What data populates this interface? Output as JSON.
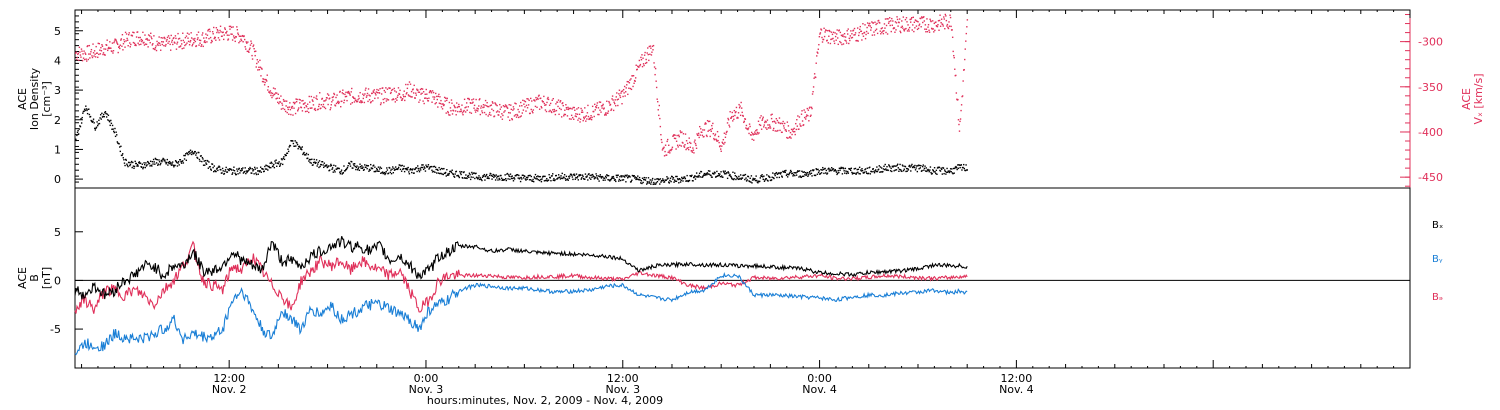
{
  "colors": {
    "black": "#000000",
    "pink": "#e0305a",
    "blue": "#1a7fd6"
  },
  "xaxis": {
    "title": "hours:minutes, Nov.  2, 2009 - Nov.  4, 2009",
    "range_hours": [
      2.6,
      84.0
    ],
    "ticks": [
      {
        "h": 12,
        "time": "12:00",
        "day": "Nov. 2"
      },
      {
        "h": 24,
        "time": "0:00",
        "day": "Nov. 3"
      },
      {
        "h": 36,
        "time": "12:00",
        "day": "Nov. 3"
      },
      {
        "h": 48,
        "time": "0:00",
        "day": "Nov. 4"
      },
      {
        "h": 60,
        "time": "12:00",
        "day": "Nov. 4"
      }
    ]
  },
  "chart_data": [
    {
      "type": "scatter",
      "panel": "top",
      "ylabel_lines": [
        "ACE",
        "Ion Density",
        "[cm⁻³]"
      ],
      "ylim": [
        -0.3,
        5.7
      ],
      "yticks": [
        0,
        1,
        2,
        3,
        4,
        5
      ],
      "ylabel_right_lines": [
        "ACE",
        "Vₓ [km/s]"
      ],
      "ylim_right": [
        -462,
        -265
      ],
      "yticks_right": [
        -450,
        -400,
        -350,
        -300
      ],
      "series": [
        {
          "axis": "left",
          "color": "black",
          "x": [
            2.6,
            3.2,
            3.8,
            4.4,
            5.0,
            5.6,
            6.2,
            6.8,
            7.4,
            8.0,
            8.6,
            9.2,
            9.8,
            10.4,
            11.0,
            11.6,
            12.2,
            12.8,
            13.4,
            14.0,
            14.6,
            15.2,
            15.8,
            16.4,
            17.0,
            17.6,
            18.2,
            18.8,
            19.4,
            20.0,
            20.6,
            21.2,
            21.8,
            22.4,
            23.0,
            23.6,
            24.2,
            24.8,
            25.4,
            26.0,
            27.0,
            28.0,
            29.0,
            30.0,
            31.0,
            32.0,
            33.0,
            34.0,
            35.0,
            36.0,
            37.0,
            38.0,
            39.0,
            40.0,
            41.0,
            42.0,
            43.0,
            44.0,
            45.0,
            46.0,
            47.0,
            48.0,
            49.0,
            50.0,
            51.0,
            52.0,
            53.0,
            54.0,
            55.0,
            56.0,
            56.5,
            57.0
          ],
          "values": [
            1.3,
            2.5,
            1.8,
            2.3,
            1.6,
            0.6,
            0.5,
            0.5,
            0.6,
            0.6,
            0.5,
            0.7,
            1.0,
            0.6,
            0.4,
            0.3,
            0.3,
            0.3,
            0.3,
            0.3,
            0.5,
            0.6,
            1.3,
            1.0,
            0.6,
            0.5,
            0.4,
            0.3,
            0.5,
            0.4,
            0.4,
            0.3,
            0.3,
            0.4,
            0.3,
            0.4,
            0.4,
            0.3,
            0.2,
            0.2,
            0.1,
            0.1,
            0.1,
            0.05,
            0.05,
            0.1,
            0.1,
            0.1,
            0.05,
            0.05,
            0.0,
            -0.05,
            0.0,
            0.05,
            0.2,
            0.2,
            0.1,
            0.0,
            0.1,
            0.2,
            0.2,
            0.3,
            0.3,
            0.3,
            0.3,
            0.4,
            0.4,
            0.4,
            0.3,
            0.3,
            0.4,
            0.4
          ]
        },
        {
          "axis": "right",
          "color": "pink",
          "x": [
            2.6,
            3.2,
            3.8,
            4.4,
            5.0,
            5.6,
            6.2,
            6.8,
            7.4,
            8.0,
            8.6,
            9.2,
            9.8,
            10.4,
            11.0,
            11.6,
            12.2,
            12.8,
            13.4,
            14.0,
            14.6,
            15.2,
            15.8,
            16.4,
            17.0,
            17.6,
            18.2,
            18.8,
            19.4,
            20.0,
            20.6,
            21.2,
            21.8,
            22.4,
            23.0,
            23.6,
            24.2,
            24.8,
            25.4,
            26.0,
            27.0,
            28.0,
            29.0,
            30.0,
            31.0,
            32.0,
            33.0,
            34.0,
            35.0,
            36.0,
            36.6,
            37.2,
            37.8,
            38.4,
            39.0,
            39.6,
            40.2,
            40.8,
            41.4,
            42.0,
            42.6,
            43.2,
            43.8,
            44.4,
            45.0,
            45.6,
            46.2,
            46.8,
            47.4,
            48.0,
            49.0,
            50.0,
            51.0,
            52.0,
            53.0,
            54.0,
            55.0,
            56.0,
            56.5,
            57.0
          ],
          "values": [
            -312,
            -313,
            -310,
            -306,
            -305,
            -298,
            -295,
            -294,
            -300,
            -303,
            -300,
            -298,
            -296,
            -296,
            -292,
            -290,
            -290,
            -294,
            -310,
            -335,
            -355,
            -368,
            -372,
            -370,
            -368,
            -364,
            -366,
            -362,
            -360,
            -359,
            -359,
            -360,
            -356,
            -358,
            -352,
            -360,
            -358,
            -366,
            -372,
            -372,
            -370,
            -374,
            -378,
            -372,
            -366,
            -372,
            -380,
            -378,
            -372,
            -358,
            -340,
            -320,
            -305,
            -420,
            -412,
            -405,
            -418,
            -396,
            -395,
            -415,
            -380,
            -375,
            -405,
            -390,
            -388,
            -392,
            -400,
            -385,
            -380,
            -290,
            -295,
            -292,
            -286,
            -282,
            -280,
            -280,
            -280,
            -276,
            -398,
            -272
          ]
        }
      ]
    },
    {
      "type": "line",
      "panel": "bottom",
      "ylabel_lines": [
        "ACE",
        "B",
        "[nT]"
      ],
      "ylim": [
        -9,
        9.5
      ],
      "yticks": [
        -5,
        0,
        5
      ],
      "x": [
        2.6,
        3.2,
        3.8,
        4.4,
        5.0,
        5.6,
        6.2,
        6.8,
        7.4,
        8.0,
        8.6,
        9.2,
        9.8,
        10.4,
        11.0,
        11.6,
        12.2,
        12.8,
        13.4,
        14.0,
        14.6,
        15.2,
        15.8,
        16.4,
        17.0,
        17.6,
        18.2,
        18.8,
        19.4,
        20.0,
        20.6,
        21.2,
        21.8,
        22.4,
        23.0,
        23.6,
        24.2,
        24.8,
        25.4,
        26.0,
        27.0,
        28.0,
        29.0,
        30.0,
        31.0,
        32.0,
        33.0,
        34.0,
        35.0,
        36.0,
        37.0,
        38.0,
        39.0,
        40.0,
        41.0,
        42.0,
        43.0,
        44.0,
        45.0,
        46.0,
        47.0,
        48.0,
        49.0,
        50.0,
        51.0,
        52.0,
        53.0,
        54.0,
        55.0,
        56.0,
        56.5,
        57.0
      ],
      "series": [
        {
          "name": "Bₓ",
          "color": "black",
          "values": [
            -1,
            -1.5,
            -0.5,
            -1.5,
            -1,
            0,
            0.5,
            1.5,
            1.5,
            0.5,
            1.5,
            1.5,
            3,
            1,
            1,
            1.5,
            3,
            2,
            1.5,
            1,
            4,
            2,
            2,
            1.5,
            2.5,
            3,
            3.5,
            4,
            3.5,
            3.5,
            3,
            3.5,
            2,
            2.5,
            1.5,
            0.5,
            1,
            2.5,
            3,
            3.5,
            3.5,
            3,
            3.2,
            3,
            2.8,
            2.8,
            2.7,
            2.6,
            2.5,
            2.2,
            1,
            1.5,
            1.6,
            1.7,
            1.6,
            1.6,
            1.5,
            1.5,
            1.4,
            1.3,
            1.2,
            0.8,
            0.7,
            0.6,
            0.8,
            0.9,
            1,
            1.2,
            1.6,
            1.5,
            1.5,
            1.4
          ]
        },
        {
          "name": "Bᵧ",
          "color": "blue",
          "values": [
            -7.5,
            -6.5,
            -6.7,
            -6.7,
            -5.5,
            -5.8,
            -6,
            -6,
            -5.5,
            -5,
            -4,
            -6,
            -5.5,
            -5.8,
            -5.8,
            -5,
            -2,
            -1,
            -3,
            -5,
            -6,
            -3,
            -4,
            -5,
            -3,
            -3.5,
            -2.5,
            -4,
            -3.5,
            -3,
            -2.5,
            -2.5,
            -3,
            -3.5,
            -4,
            -5,
            -3,
            -2.5,
            -2,
            -1,
            -0.5,
            -0.6,
            -0.8,
            -0.8,
            -1,
            -1.2,
            -1.1,
            -1,
            -0.6,
            -0.5,
            -1.5,
            -1.8,
            -2,
            -1.2,
            -1,
            0.5,
            0.5,
            -1.5,
            -1.5,
            -1.6,
            -1.7,
            -1.8,
            -2,
            -1.7,
            -1.5,
            -1.5,
            -1.3,
            -1.2,
            -1,
            -1.3,
            -1.1,
            -1.3
          ]
        },
        {
          "name": "Bₔ",
          "color": "pink",
          "values": [
            -3,
            -2,
            -3,
            -1,
            -1,
            -1.5,
            -1,
            -1.5,
            -2.5,
            -1,
            0,
            1.5,
            3.5,
            0,
            -0.5,
            -1,
            1.5,
            1,
            2.5,
            1,
            -0.5,
            -1.5,
            -3,
            0,
            1,
            2,
            1.5,
            2,
            1,
            2,
            1.5,
            1,
            0.5,
            1,
            -1,
            -3,
            -2,
            0,
            0.5,
            0.5,
            0.5,
            0.5,
            0.3,
            0.3,
            0.4,
            0.4,
            0.5,
            0.3,
            0.2,
            0.1,
            0.8,
            0.5,
            0.3,
            -0.5,
            -0.8,
            -0.3,
            -0.5,
            0.3,
            0.2,
            0.3,
            0.4,
            0.5,
            0.2,
            0.2,
            0.3,
            0.5,
            0.4,
            0.3,
            0.2,
            0.3,
            0.4,
            0.4
          ]
        }
      ]
    }
  ]
}
